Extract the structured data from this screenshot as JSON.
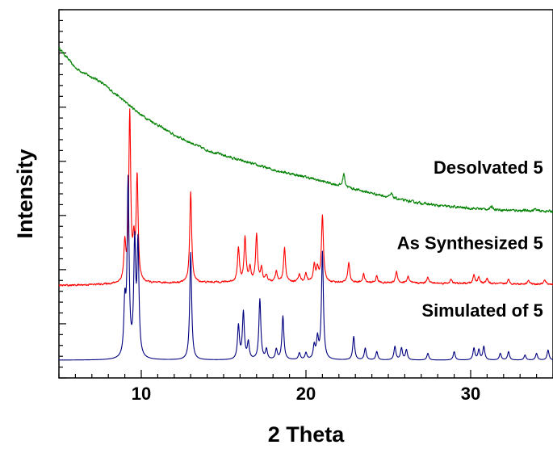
{
  "chart_data": {
    "type": "line",
    "xlabel": "2 Theta",
    "ylabel": "Intensity",
    "xlim": [
      5,
      35
    ],
    "ylim": [
      0,
      1
    ],
    "y_ticks_labeled": false,
    "grid": false,
    "x_ticks": [
      {
        "value": 10,
        "label": "10"
      },
      {
        "value": 20,
        "label": "20"
      },
      {
        "value": 30,
        "label": "30"
      }
    ],
    "series": [
      {
        "name": "Desolvated 5",
        "color": "#008000",
        "baseline_curve": [
          [
            5,
            0.93
          ],
          [
            6,
            0.87
          ],
          [
            6.7,
            0.85
          ],
          [
            7.5,
            0.83
          ],
          [
            8.5,
            0.79
          ],
          [
            10,
            0.73
          ],
          [
            12,
            0.67
          ],
          [
            14,
            0.625
          ],
          [
            16,
            0.595
          ],
          [
            18,
            0.567
          ],
          [
            20,
            0.545
          ],
          [
            22,
            0.52
          ],
          [
            24,
            0.497
          ],
          [
            26,
            0.475
          ],
          [
            28,
            0.46
          ],
          [
            30,
            0.452
          ],
          [
            32,
            0.447
          ],
          [
            35,
            0.443
          ]
        ],
        "peaks": [
          [
            22.3,
            0.04
          ],
          [
            25.2,
            0.012
          ],
          [
            31.3,
            0.01
          ],
          [
            33.9,
            0.006
          ]
        ],
        "noise": 0.006
      },
      {
        "name": "As Synthesized 5",
        "color": "#ff0000",
        "baseline_curve": [
          [
            5,
            0.222
          ],
          [
            10,
            0.228
          ],
          [
            15,
            0.232
          ],
          [
            20,
            0.232
          ],
          [
            25,
            0.23
          ],
          [
            30,
            0.228
          ],
          [
            35,
            0.226
          ]
        ],
        "peaks": [
          [
            9.0,
            0.11
          ],
          [
            9.3,
            0.5
          ],
          [
            9.55,
            0.1
          ],
          [
            9.75,
            0.31
          ],
          [
            13.0,
            0.27
          ],
          [
            15.9,
            0.1
          ],
          [
            16.3,
            0.13
          ],
          [
            16.6,
            0.04
          ],
          [
            17.0,
            0.14
          ],
          [
            17.3,
            0.04
          ],
          [
            17.6,
            0.02
          ],
          [
            18.2,
            0.03
          ],
          [
            18.7,
            0.1
          ],
          [
            19.6,
            0.025
          ],
          [
            20.0,
            0.025
          ],
          [
            20.5,
            0.05
          ],
          [
            20.7,
            0.04
          ],
          [
            21.0,
            0.2
          ],
          [
            22.6,
            0.06
          ],
          [
            23.5,
            0.025
          ],
          [
            24.3,
            0.02
          ],
          [
            25.5,
            0.035
          ],
          [
            26.2,
            0.02
          ],
          [
            27.4,
            0.02
          ],
          [
            28.8,
            0.012
          ],
          [
            30.2,
            0.025
          ],
          [
            30.5,
            0.02
          ],
          [
            31.0,
            0.015
          ],
          [
            32.3,
            0.012
          ],
          [
            33.5,
            0.012
          ],
          [
            34.5,
            0.012
          ]
        ],
        "noise": 0.004
      },
      {
        "name": "Simulated of 5",
        "color": "#000080",
        "baseline_curve": [
          [
            5,
            0.0
          ],
          [
            35,
            0.0
          ]
        ],
        "peaks": [
          [
            9.0,
            0.15
          ],
          [
            9.2,
            0.52
          ],
          [
            9.6,
            0.33
          ],
          [
            9.8,
            0.33
          ],
          [
            13.0,
            0.32
          ],
          [
            15.9,
            0.1
          ],
          [
            16.2,
            0.14
          ],
          [
            16.5,
            0.05
          ],
          [
            17.2,
            0.18
          ],
          [
            17.6,
            0.03
          ],
          [
            18.2,
            0.03
          ],
          [
            18.6,
            0.13
          ],
          [
            19.6,
            0.02
          ],
          [
            20.0,
            0.02
          ],
          [
            20.5,
            0.04
          ],
          [
            20.7,
            0.06
          ],
          [
            21.0,
            0.32
          ],
          [
            22.9,
            0.07
          ],
          [
            23.6,
            0.035
          ],
          [
            24.3,
            0.025
          ],
          [
            25.4,
            0.04
          ],
          [
            25.8,
            0.035
          ],
          [
            26.1,
            0.03
          ],
          [
            27.4,
            0.02
          ],
          [
            29.0,
            0.025
          ],
          [
            30.2,
            0.035
          ],
          [
            30.5,
            0.03
          ],
          [
            30.8,
            0.04
          ],
          [
            31.8,
            0.02
          ],
          [
            32.3,
            0.025
          ],
          [
            33.3,
            0.015
          ],
          [
            34.0,
            0.02
          ],
          [
            34.7,
            0.03
          ]
        ],
        "noise": 0.0
      }
    ],
    "annotations": [
      {
        "text": "Desolvated 5",
        "series": 0,
        "anchor": "right",
        "x": 34.4,
        "y": 0.555
      },
      {
        "text": "As Synthesized 5",
        "series": 1,
        "anchor": "right",
        "x": 34.4,
        "y": 0.33
      },
      {
        "text": "Simulated of 5",
        "series": 2,
        "anchor": "right",
        "x": 34.4,
        "y": 0.13
      }
    ]
  }
}
